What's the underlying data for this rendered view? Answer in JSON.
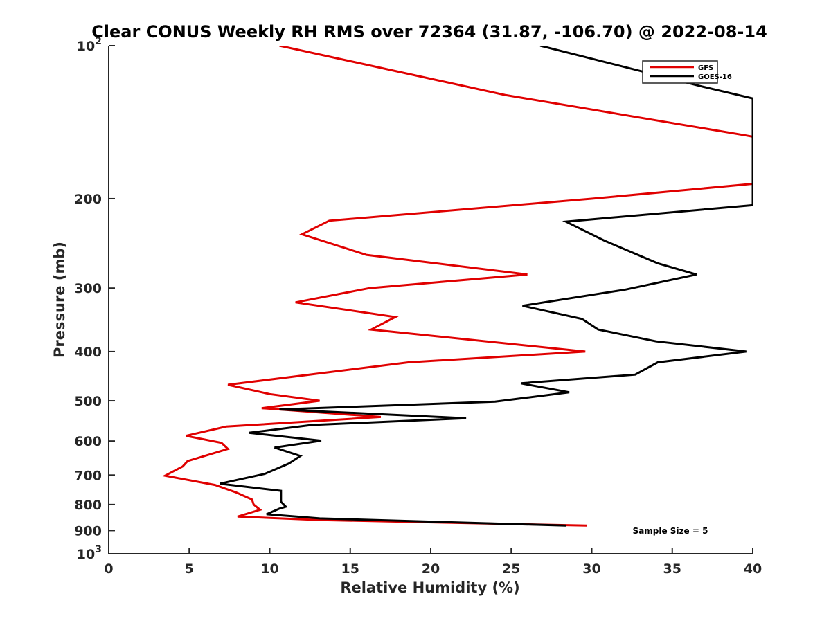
{
  "chart_data": {
    "type": "line",
    "title": "Clear CONUS Weekly RH RMS over 72364 (31.87, -106.70) @ 2022-08-14",
    "xlabel": "Relative Humidity (%)",
    "ylabel": "Pressure (mb)",
    "xlim": [
      0,
      40
    ],
    "ylim": [
      100,
      1000
    ],
    "y_scale": "log",
    "y_reversed": true,
    "xticks": [
      0,
      5,
      10,
      15,
      20,
      25,
      30,
      35,
      40
    ],
    "xtick_labels": [
      "0",
      "5",
      "10",
      "15",
      "20",
      "25",
      "30",
      "35",
      "40"
    ],
    "yticks": [
      100,
      200,
      300,
      400,
      500,
      600,
      700,
      800,
      900,
      1000
    ],
    "ytick_labels": [
      "10^2",
      "200",
      "300",
      "400",
      "500",
      "600",
      "700",
      "800",
      "900",
      "10^3"
    ],
    "grid": false,
    "legend_position": "top-right",
    "annotation": "Sample Size = 5",
    "series": [
      {
        "name": "GFS",
        "color": "#e00000",
        "points": [
          [
            10.6,
            100
          ],
          [
            24.6,
            125
          ],
          [
            39.5,
            150
          ],
          [
            40.0,
            151
          ],
          [
            40.0,
            187
          ],
          [
            30.0,
            200
          ],
          [
            13.7,
            221
          ],
          [
            12.0,
            235
          ],
          [
            16.0,
            258
          ],
          [
            26.0,
            282
          ],
          [
            16.2,
            300
          ],
          [
            11.6,
            320
          ],
          [
            17.8,
            342
          ],
          [
            16.3,
            362
          ],
          [
            29.6,
            400
          ],
          [
            18.6,
            420
          ],
          [
            7.4,
            465
          ],
          [
            10.0,
            485
          ],
          [
            13.1,
            500
          ],
          [
            9.5,
            517
          ],
          [
            16.9,
            538
          ],
          [
            7.3,
            562
          ],
          [
            4.8,
            586
          ],
          [
            7.0,
            605
          ],
          [
            7.4,
            622
          ],
          [
            4.9,
            657
          ],
          [
            4.6,
            673
          ],
          [
            3.5,
            702
          ],
          [
            6.6,
            732
          ],
          [
            7.9,
            757
          ],
          [
            8.9,
            782
          ],
          [
            9.0,
            800
          ],
          [
            9.4,
            819
          ],
          [
            8.0,
            845
          ],
          [
            13.1,
            858
          ],
          [
            29.7,
            880
          ]
        ]
      },
      {
        "name": "GOES-16",
        "color": "#000000",
        "points": [
          [
            26.8,
            100
          ],
          [
            36.7,
            120
          ],
          [
            40.0,
            127
          ],
          [
            40.0,
            206
          ],
          [
            28.4,
            222
          ],
          [
            30.8,
            242
          ],
          [
            34.1,
            268
          ],
          [
            36.5,
            282
          ],
          [
            32.1,
            302
          ],
          [
            25.7,
            325
          ],
          [
            29.4,
            345
          ],
          [
            30.4,
            362
          ],
          [
            34.0,
            382
          ],
          [
            39.6,
            400
          ],
          [
            34.1,
            420
          ],
          [
            32.7,
            444
          ],
          [
            25.6,
            462
          ],
          [
            28.6,
            481
          ],
          [
            24.0,
            502
          ],
          [
            10.6,
            520
          ],
          [
            22.2,
            541
          ],
          [
            12.6,
            558
          ],
          [
            8.7,
            578
          ],
          [
            13.2,
            599
          ],
          [
            10.3,
            618
          ],
          [
            11.9,
            642
          ],
          [
            11.2,
            664
          ],
          [
            9.7,
            696
          ],
          [
            6.9,
            728
          ],
          [
            10.7,
            752
          ],
          [
            10.7,
            790
          ],
          [
            11.0,
            808
          ],
          [
            10.6,
            815
          ],
          [
            9.8,
            836
          ],
          [
            13.1,
            852
          ],
          [
            28.4,
            880
          ]
        ]
      }
    ]
  }
}
